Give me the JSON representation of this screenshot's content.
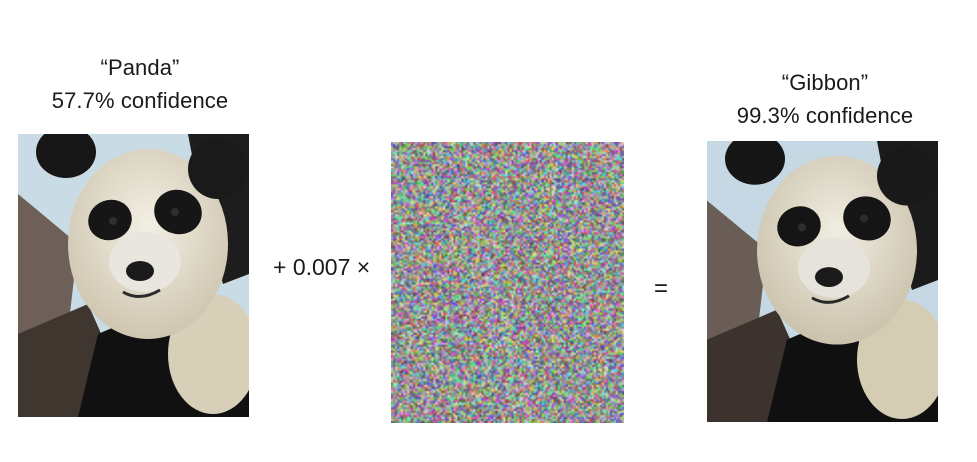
{
  "left": {
    "label": "“Panda”",
    "confidence": "57.7% confidence",
    "image": "panda-photo"
  },
  "operator": {
    "multiplier": "+ 0.007 ×",
    "equals": "="
  },
  "noise": {
    "image": "adversarial-noise-pattern"
  },
  "right": {
    "label": "“Gibbon”",
    "confidence": "99.3% confidence",
    "image": "panda-photo-perturbed"
  },
  "colors": {
    "text": "#1a1a1a",
    "panda_white": "#ece6d6",
    "panda_black": "#151515",
    "background_sky": "#c9dce6",
    "branch": "#4a4038"
  }
}
